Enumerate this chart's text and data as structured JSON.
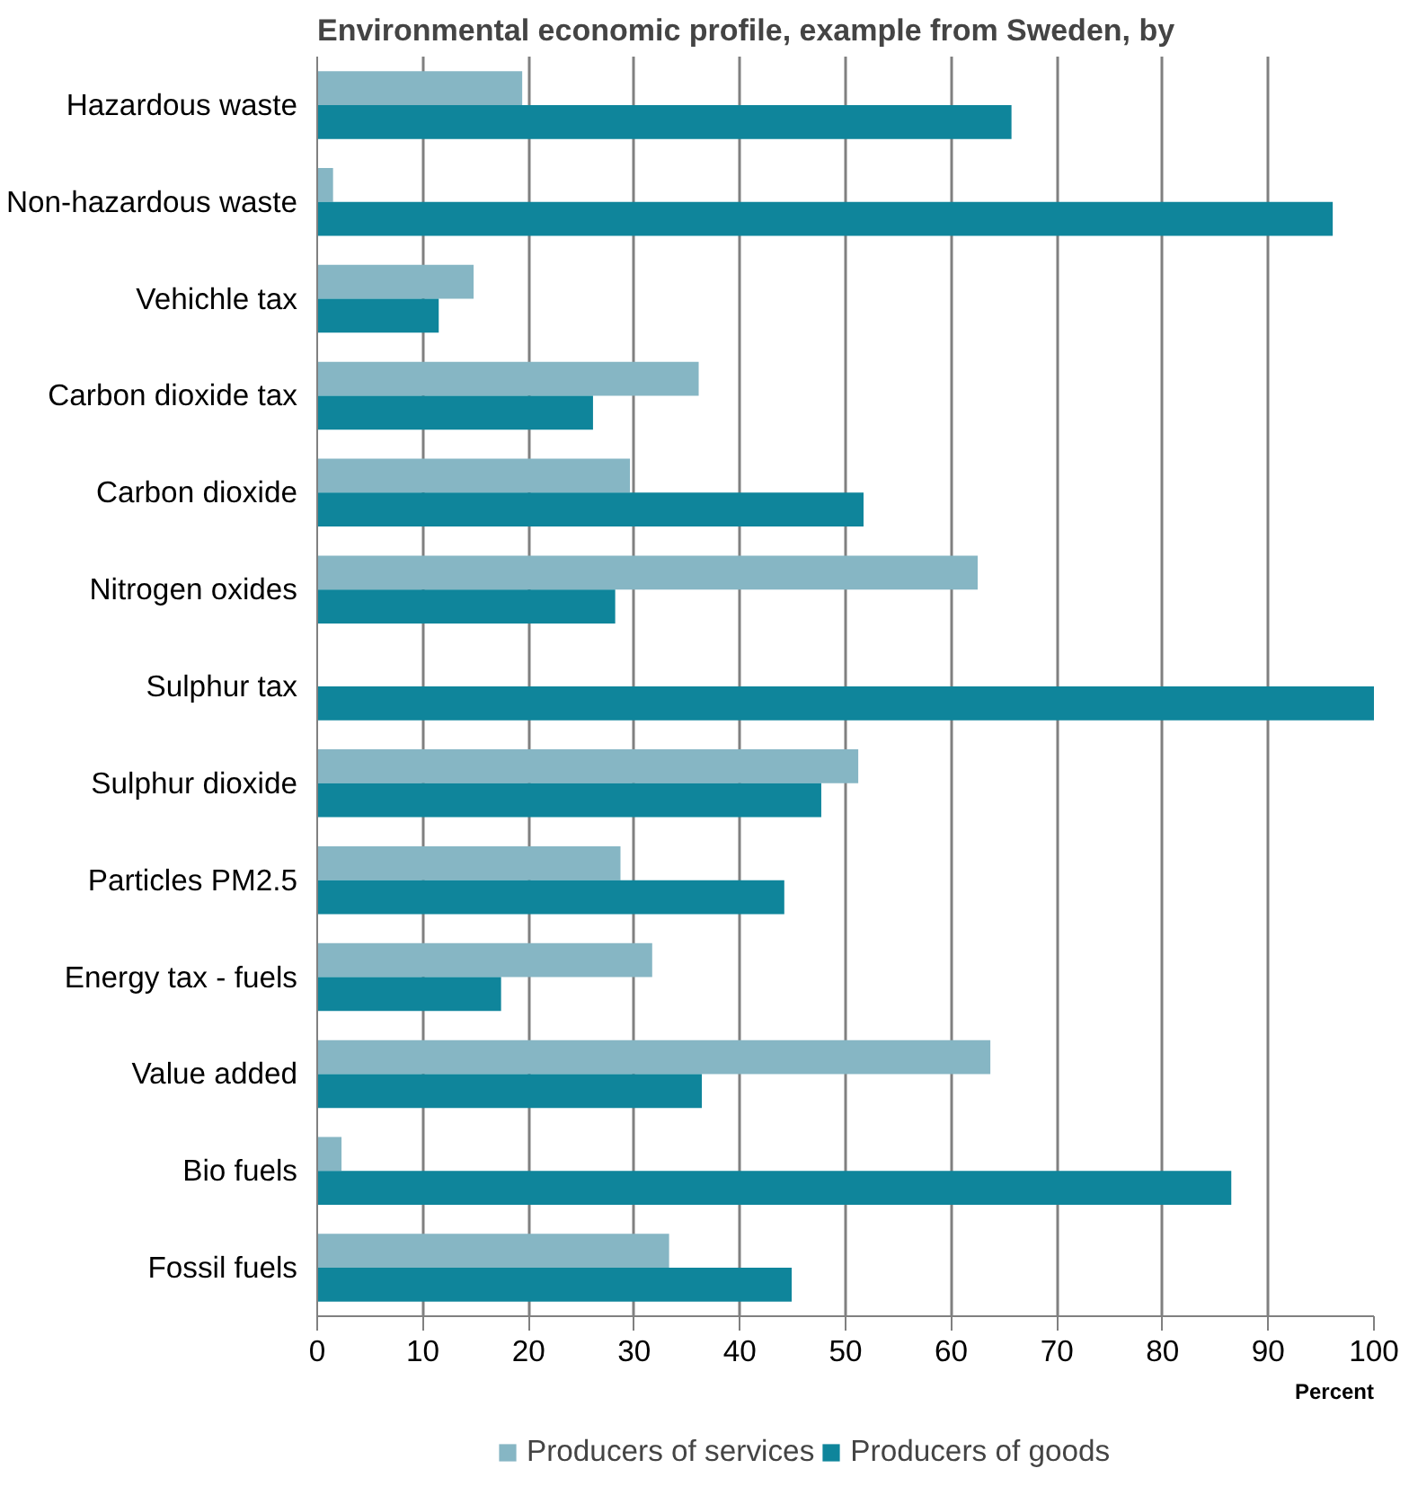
{
  "chart_data": {
    "type": "bar",
    "orientation": "horizontal",
    "title": "Environmental economic profile, example from Sweden, by",
    "xlabel": "Percent",
    "categories": [
      "Hazardous waste",
      "Non-hazardous waste",
      "Vehichle tax",
      "Carbon dioxide tax",
      "Carbon dioxide",
      "Nitrogen oxides",
      "Sulphur tax",
      "Sulphur dioxide",
      "Particles PM2.5",
      "Energy tax - fuels",
      "Value added",
      "Bio fuels",
      "Fossil fuels"
    ],
    "series": [
      {
        "name": "Producers of services",
        "color": "#86b6c4",
        "values": [
          19.4,
          1.5,
          14.8,
          36.1,
          29.6,
          62.5,
          0,
          51.2,
          28.7,
          31.7,
          63.7,
          2.3,
          33.3
        ]
      },
      {
        "name": "Producers of goods",
        "color": "#0f859b",
        "values": [
          65.7,
          96.1,
          11.5,
          26.1,
          51.7,
          28.2,
          100,
          47.7,
          44.2,
          17.4,
          36.4,
          86.5,
          44.9
        ]
      }
    ],
    "xlim": [
      0,
      100
    ],
    "xticks": [
      0,
      10,
      20,
      30,
      40,
      50,
      60,
      70,
      80,
      90,
      100
    ],
    "grid": "x",
    "legend": "bottom"
  }
}
